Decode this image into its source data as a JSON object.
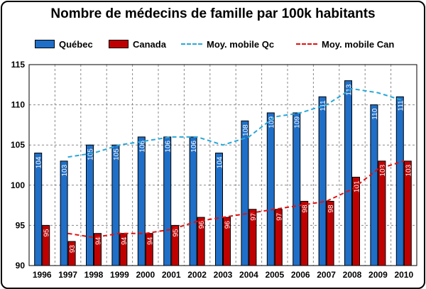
{
  "chart_data": {
    "type": "bar",
    "title": "Nombre de médecins de famille par 100k habitants",
    "categories": [
      "1996",
      "1997",
      "1998",
      "1999",
      "2000",
      "2001",
      "2002",
      "2003",
      "2004",
      "2005",
      "2006",
      "2007",
      "2008",
      "2009",
      "2010"
    ],
    "series": [
      {
        "name": "Québec",
        "kind": "bar",
        "color": "#1f6fc8",
        "values": [
          104,
          103,
          105,
          105,
          106,
          106,
          106,
          104,
          108,
          109,
          109,
          111,
          113,
          110,
          111
        ]
      },
      {
        "name": "Canada",
        "kind": "bar",
        "color": "#c00000",
        "values": [
          95,
          93,
          94,
          94,
          94,
          95,
          96,
          96,
          97,
          97,
          98,
          98,
          101,
          103,
          103
        ]
      },
      {
        "name": "Moy. mobile Qc",
        "kind": "line",
        "color": "#28a8d8",
        "dash": true,
        "values": [
          null,
          103.5,
          104,
          105,
          105.5,
          106,
          106,
          105,
          106,
          108.5,
          109,
          110,
          112,
          111.5,
          110.5
        ]
      },
      {
        "name": "Moy. mobile Can",
        "kind": "line",
        "color": "#e01010",
        "dash": true,
        "values": [
          null,
          94,
          93.5,
          94,
          94,
          94.5,
          95.5,
          96,
          96.5,
          97,
          97.5,
          98,
          99.5,
          102,
          103
        ]
      }
    ],
    "ylim": [
      90,
      115
    ],
    "yticks": [
      90,
      95,
      100,
      105,
      110,
      115
    ],
    "grid": true,
    "legend": "top"
  }
}
